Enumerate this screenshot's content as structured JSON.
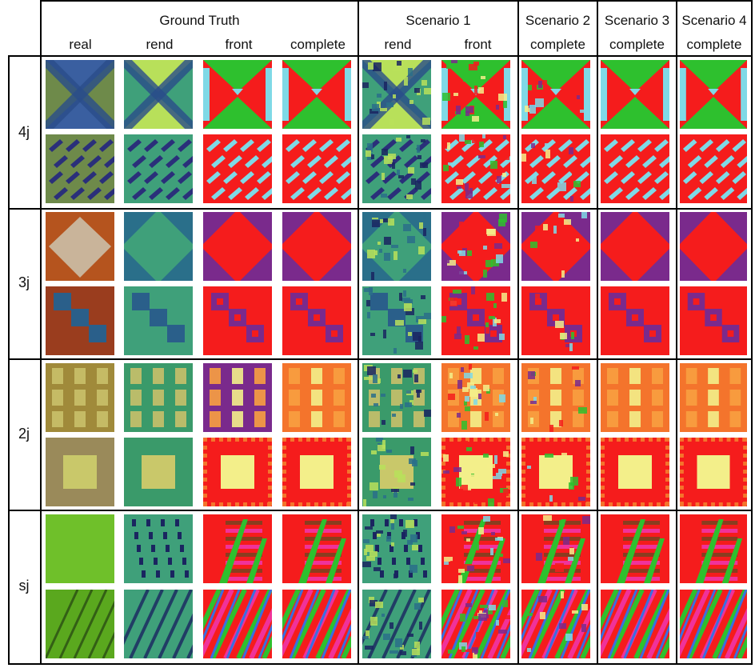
{
  "figure": {
    "headers": {
      "groups": [
        "Ground Truth",
        "Scenario 1",
        "Scenario 2",
        "Scenario 3",
        "Scenario 4"
      ],
      "columns": [
        "real",
        "rend",
        "front",
        "complete",
        "rend",
        "front",
        "complete",
        "complete",
        "complete"
      ]
    },
    "row_groups": [
      "4j",
      "3j",
      "2j",
      "sj"
    ],
    "palette": {
      "red": "#f51c1c",
      "green": "#2ec02e",
      "cyan": "#7fd9e6",
      "purple": "#7a2a8c",
      "orange": "#f4742c",
      "yellow": "#f3ef8a",
      "pink": "#f0329a",
      "blue": "#3a6fe0",
      "brown": "#8a3d1f",
      "teal_dark": "#2a3d7a",
      "teal_light": "#8cd66e"
    }
  }
}
